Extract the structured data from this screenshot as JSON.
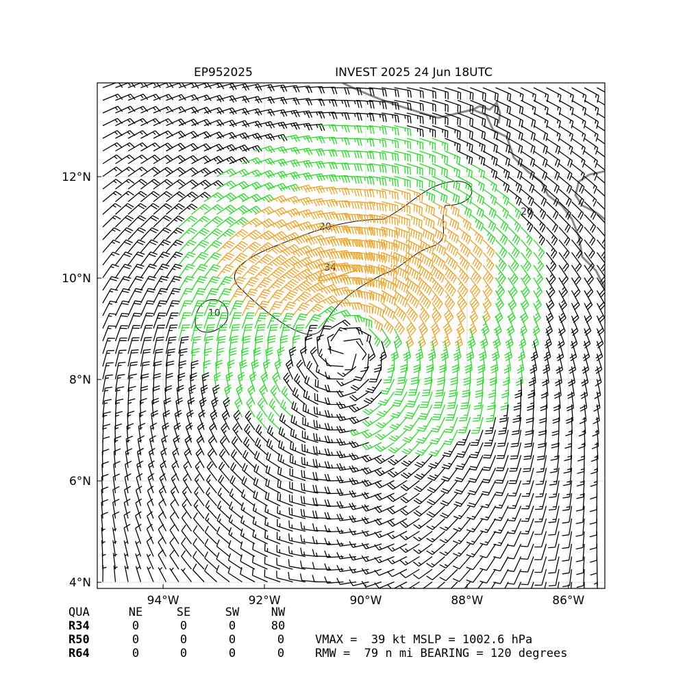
{
  "chart_data": {
    "type": "wind-barb-map",
    "title_left": "EP952025",
    "title_right": "INVEST 2025 24 Jun 18UTC",
    "xlim": [
      -95.3,
      -85.28
    ],
    "ylim": [
      3.88,
      13.85
    ],
    "xticks": [
      {
        "value": -94,
        "label": "94°W"
      },
      {
        "value": -92,
        "label": "92°W"
      },
      {
        "value": -90,
        "label": "90°W"
      },
      {
        "value": -88,
        "label": "88°W"
      },
      {
        "value": -86,
        "label": "86°W"
      }
    ],
    "yticks": [
      {
        "value": 4,
        "label": "4°N"
      },
      {
        "value": 6,
        "label": "6°N"
      },
      {
        "value": 8,
        "label": "8°N"
      },
      {
        "value": 10,
        "label": "10°N"
      },
      {
        "value": 12,
        "label": "12°N"
      }
    ],
    "grid": true,
    "contour_labels": [
      {
        "text": "20",
        "lon": -90.8,
        "lat": 10.95
      },
      {
        "text": "34",
        "lon": -90.7,
        "lat": 10.15
      },
      {
        "text": "10",
        "lon": -92.99,
        "lat": 9.25
      },
      {
        "text": "20",
        "lon": -86.82,
        "lat": 11.25
      }
    ]
  },
  "table": {
    "header": [
      "QUA",
      "NE",
      "SE",
      "SW",
      "NW"
    ],
    "rows": [
      [
        "R34",
        "0",
        "0",
        "0",
        "80"
      ],
      [
        "R50",
        "0",
        "0",
        "0",
        "0"
      ],
      [
        "R64",
        "0",
        "0",
        "0",
        "0"
      ]
    ]
  },
  "stats": [
    "VMAX =  39 kt MSLP = 1002.6 hPa",
    "RMW =  79 n mi BEARING = 120 degrees"
  ]
}
